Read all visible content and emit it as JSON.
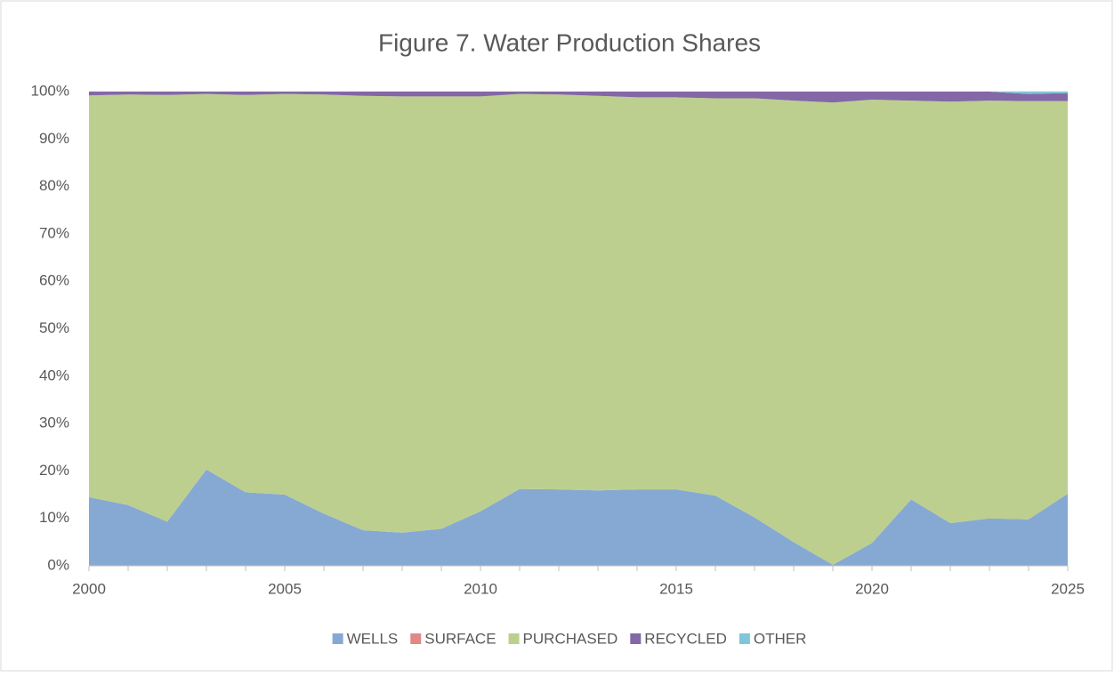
{
  "chart_data": {
    "type": "stacked_area_percent",
    "title": "Figure 7. Water Production Shares",
    "x": [
      2000,
      2001,
      2002,
      2003,
      2004,
      2005,
      2006,
      2007,
      2008,
      2009,
      2010,
      2011,
      2012,
      2013,
      2014,
      2015,
      2016,
      2017,
      2018,
      2019,
      2020,
      2021,
      2022,
      2023,
      2024,
      2025
    ],
    "series": [
      {
        "name": "WELLS",
        "color": "#86a9d3",
        "values": [
          14.5,
          12.8,
          9.3,
          20.3,
          15.5,
          15,
          11,
          7.5,
          7,
          7.8,
          11.5,
          16.2,
          16.1,
          15.9,
          16.1,
          16.1,
          14.8,
          10.2,
          5,
          0.2,
          4.8,
          14,
          9,
          10,
          9.8,
          15.2
        ]
      },
      {
        "name": "SURFACE",
        "color": "#e08a88",
        "values": [
          0,
          0,
          0,
          0,
          0,
          0,
          0,
          0,
          0,
          0,
          0,
          0,
          0,
          0,
          0,
          0,
          0,
          0,
          0,
          0,
          0,
          0,
          0,
          0,
          0,
          0
        ]
      },
      {
        "name": "PURCHASED",
        "color": "#bccf8f",
        "values": [
          84.7,
          86.6,
          90,
          79.2,
          83.8,
          84.5,
          88.4,
          91.6,
          92,
          91.2,
          87.5,
          83.3,
          83.3,
          83.2,
          82.7,
          82.7,
          83.8,
          88.4,
          93.1,
          97.5,
          93.5,
          84.1,
          88.9,
          88.1,
          88.2,
          82.8
        ]
      },
      {
        "name": "RECYCLED",
        "color": "#8467a6",
        "values": [
          0.8,
          0.6,
          0.7,
          0.5,
          0.7,
          0.5,
          0.6,
          0.9,
          1,
          1,
          1,
          0.5,
          0.6,
          0.9,
          1.2,
          1.2,
          1.4,
          1.4,
          1.9,
          2.3,
          1.7,
          1.9,
          2.1,
          1.9,
          1.5,
          1.7
        ]
      },
      {
        "name": "OTHER",
        "color": "#7fc6d8",
        "values": [
          0,
          0,
          0,
          0,
          0,
          0,
          0,
          0,
          0,
          0,
          0,
          0,
          0,
          0,
          0,
          0,
          0,
          0,
          0,
          0,
          0,
          0,
          0,
          0,
          0.5,
          0.3
        ]
      }
    ],
    "xlim": [
      2000,
      2025
    ],
    "xticks": [
      2000,
      2005,
      2010,
      2015,
      2020,
      2025
    ],
    "ylim": [
      0,
      100
    ],
    "yticks": [
      {
        "value": 0,
        "label": "0%"
      },
      {
        "value": 10,
        "label": "10%"
      },
      {
        "value": 20,
        "label": "20%"
      },
      {
        "value": 30,
        "label": "30%"
      },
      {
        "value": 40,
        "label": "40%"
      },
      {
        "value": 50,
        "label": "50%"
      },
      {
        "value": 60,
        "label": "60%"
      },
      {
        "value": 70,
        "label": "70%"
      },
      {
        "value": 80,
        "label": "80%"
      },
      {
        "value": 90,
        "label": "90%"
      },
      {
        "value": 100,
        "label": "100%"
      }
    ],
    "grid": true,
    "legend": "bottom"
  }
}
